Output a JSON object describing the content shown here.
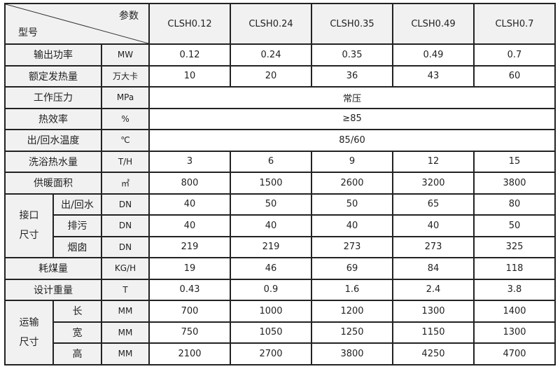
{
  "header": {
    "corner_top": "参数",
    "corner_bottom": "型号",
    "models": [
      "CLSH0.12",
      "CLSH0.24",
      "CLSH0.35",
      "CLSH0.49",
      "CLSH0.7"
    ]
  },
  "rows": [
    {
      "label": "输出功率",
      "unit": "MW",
      "values": [
        "0.12",
        "0.24",
        "0.35",
        "0.49",
        "0.7"
      ]
    },
    {
      "label": "额定发热量",
      "unit": "万大卡",
      "values": [
        "10",
        "20",
        "36",
        "43",
        "60"
      ]
    },
    {
      "label": "工作压力",
      "unit": "MPa",
      "merged": "常压"
    },
    {
      "label": "热效率",
      "unit": "%",
      "merged": "≥85"
    },
    {
      "label": "出/回水温度",
      "unit": "℃",
      "merged": "85/60"
    },
    {
      "label": "洗浴热水量",
      "unit": "T/H",
      "values": [
        "3",
        "6",
        "9",
        "12",
        "15"
      ]
    },
    {
      "label": "供暖面积",
      "unit": "㎡",
      "values": [
        "800",
        "1500",
        "2600",
        "3200",
        "3800"
      ]
    },
    {
      "group": "接口\n尺寸",
      "items": [
        {
          "label": "出/回水",
          "unit": "DN",
          "values": [
            "40",
            "50",
            "50",
            "65",
            "80"
          ]
        },
        {
          "label": "排污",
          "unit": "DN",
          "values": [
            "40",
            "40",
            "40",
            "40",
            "50"
          ]
        },
        {
          "label": "烟囱",
          "unit": "DN",
          "values": [
            "219",
            "219",
            "273",
            "273",
            "325"
          ]
        }
      ]
    },
    {
      "label": "耗煤量",
      "unit": "KG/H",
      "values": [
        "19",
        "46",
        "69",
        "84",
        "118"
      ]
    },
    {
      "label": "设计重量",
      "unit": "T",
      "values": [
        "0.43",
        "0.9",
        "1.6",
        "2.4",
        "3.8"
      ]
    },
    {
      "group": "运输\n尺寸",
      "items": [
        {
          "label": "长",
          "unit": "MM",
          "values": [
            "700",
            "1000",
            "1200",
            "1300",
            "1400"
          ]
        },
        {
          "label": "宽",
          "unit": "MM",
          "values": [
            "750",
            "1050",
            "1250",
            "1150",
            "1300"
          ]
        },
        {
          "label": "高",
          "unit": "MM",
          "values": [
            "2100",
            "2700",
            "3800",
            "4250",
            "4700"
          ]
        }
      ]
    }
  ]
}
